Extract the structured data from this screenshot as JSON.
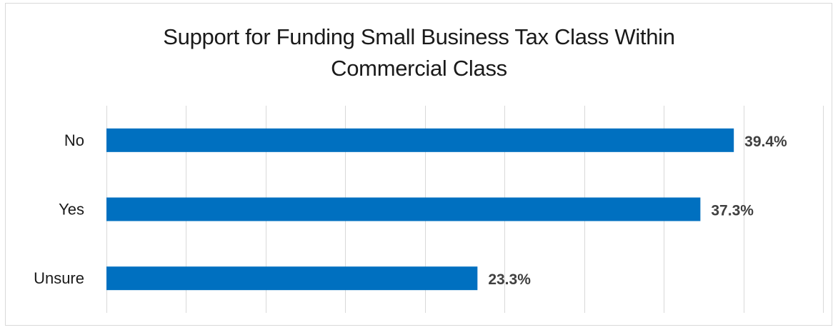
{
  "chart_data": {
    "type": "bar",
    "orientation": "horizontal",
    "title": "Support for Funding Small Business Tax Class Within Commercial Class",
    "title_lines": [
      "Support for Funding Small Business Tax Class Within",
      "Commercial Class"
    ],
    "categories": [
      "No",
      "Yes",
      "Unsure"
    ],
    "values": [
      39.4,
      37.3,
      23.3
    ],
    "data_labels": [
      "39.4%",
      "37.3%",
      "23.3%"
    ],
    "xlim": [
      0,
      45
    ],
    "grid_step": 5,
    "grid": true,
    "legend": "none",
    "bar_color": "#0070c0",
    "xlabel": "",
    "ylabel": ""
  }
}
